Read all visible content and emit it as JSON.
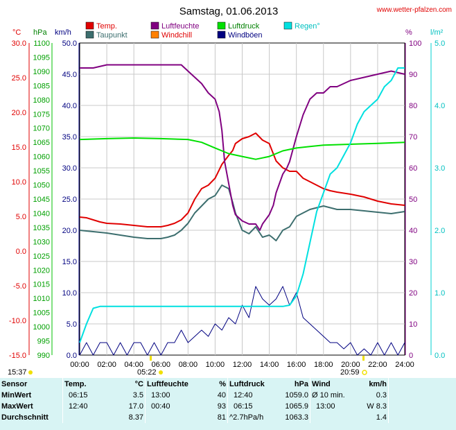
{
  "header": {
    "title": "Samstag, 01.06.2013",
    "site": "www.wetter-pfalzen.com"
  },
  "legend": [
    {
      "label": "Temp.",
      "color": "#e00000"
    },
    {
      "label": "Taupunkt",
      "color": "#3c6e6e"
    },
    {
      "label": "Luftfeuchte",
      "color": "#800080"
    },
    {
      "label": "Windchill",
      "color": "#ff8000"
    },
    {
      "label": "Luftdruck",
      "color": "#00e000"
    },
    {
      "label": "Windböen",
      "color": "#000080"
    },
    {
      "label": "Regen°",
      "color": "#00e0e0"
    }
  ],
  "axes": {
    "units": {
      "temp": "°C",
      "press": "hPa",
      "wind": "km/h",
      "hum": "%",
      "rain": "l/m²"
    },
    "temp_ticks": [
      "30.0",
      "25.0",
      "20.0",
      "15.0",
      "10.0",
      "5.0",
      "0.0",
      "-5.0",
      "-10.0",
      "-15.0"
    ],
    "press_ticks": [
      "1100",
      "1095",
      "1090",
      "1085",
      "1080",
      "1075",
      "1070",
      "1065",
      "1060",
      "1055",
      "1050",
      "1045",
      "1040",
      "1035",
      "1030",
      "1025",
      "1020",
      "1015",
      "1010",
      "1005",
      "1000",
      "995",
      "990"
    ],
    "wind_ticks": [
      "50.0",
      "45.0",
      "40.0",
      "35.0",
      "30.0",
      "25.0",
      "20.0",
      "15.0",
      "10.0",
      "5.0",
      "0.0"
    ],
    "hum_ticks": [
      "100",
      "90",
      "80",
      "70",
      "60",
      "50",
      "40",
      "30",
      "20",
      "10",
      "0"
    ],
    "rain_ticks": [
      "5.0",
      "4.0",
      "3.0",
      "2.0",
      "1.0",
      "0.0"
    ],
    "time_ticks": [
      "00:00",
      "02:00",
      "04:00",
      "06:00",
      "08:00",
      "10:00",
      "12:00",
      "14:00",
      "16:00",
      "18:00",
      "20:00",
      "22:00",
      "24:00"
    ]
  },
  "sun": {
    "sunrise": "05:22",
    "sunset": "20:59",
    "left_time": "15:37"
  },
  "chart_data": {
    "type": "line",
    "title": "Samstag, 01.06.2013",
    "x_range": [
      0,
      24
    ],
    "series": [
      {
        "name": "Temp.",
        "axis": "temp",
        "ylim": [
          -15,
          30
        ],
        "x": [
          0,
          0.5,
          1,
          1.5,
          2,
          3,
          4,
          4.5,
          5,
          5.5,
          6,
          6.5,
          7,
          7.5,
          8,
          8.5,
          9,
          9.5,
          10,
          10.5,
          11,
          11.3,
          11.5,
          12,
          12.5,
          13,
          13.5,
          14,
          14.2,
          14.5,
          15,
          15.5,
          16,
          16.5,
          17,
          17.5,
          18,
          18.5,
          19,
          20,
          21,
          22,
          23,
          24
        ],
        "y": [
          4.9,
          4.8,
          4.5,
          4.2,
          4.0,
          3.9,
          3.7,
          3.6,
          3.5,
          3.5,
          3.5,
          3.7,
          4.0,
          4.5,
          5.5,
          7.5,
          9.0,
          9.5,
          10.5,
          12.5,
          13.8,
          14.5,
          15.5,
          16.2,
          16.5,
          17.0,
          16.0,
          15.5,
          14.5,
          13.0,
          12.0,
          11.5,
          11.5,
          10.5,
          10.0,
          9.5,
          9.0,
          8.7,
          8.5,
          8.2,
          7.8,
          7.2,
          6.8,
          6.6
        ]
      },
      {
        "name": "Taupunkt",
        "axis": "temp",
        "ylim": [
          -15,
          30
        ],
        "x": [
          0,
          1,
          2,
          3,
          4,
          5,
          6,
          6.5,
          7,
          7.5,
          8,
          8.5,
          9,
          9.5,
          10,
          10.5,
          11,
          11.3,
          11.5,
          12,
          12.5,
          13,
          13.5,
          14,
          14.2,
          14.5,
          15,
          15.5,
          16,
          16.5,
          17,
          18,
          19,
          20,
          21,
          22,
          23,
          24
        ],
        "y": [
          3.0,
          2.8,
          2.6,
          2.3,
          2.0,
          1.8,
          1.8,
          2.0,
          2.3,
          3.0,
          4.0,
          5.5,
          6.5,
          7.5,
          8.0,
          9.5,
          9.0,
          7.0,
          5.5,
          3.0,
          2.5,
          3.5,
          2.0,
          2.3,
          2.0,
          1.5,
          3.0,
          3.5,
          5.0,
          5.5,
          6.0,
          6.5,
          6.0,
          6.0,
          5.8,
          5.6,
          5.4,
          5.7
        ]
      },
      {
        "name": "Luftfeuchte",
        "axis": "hum",
        "ylim": [
          0,
          100
        ],
        "x": [
          0,
          1,
          2,
          3,
          4,
          5,
          6,
          6.5,
          7,
          7.5,
          8,
          8.5,
          9,
          9.5,
          10,
          10.3,
          10.5,
          10.7,
          11,
          11.3,
          11.5,
          12,
          12.5,
          13,
          13.3,
          13.5,
          14,
          14.3,
          14.5,
          15,
          15.3,
          15.5,
          16,
          16.5,
          17,
          17.5,
          18,
          18.5,
          19,
          20,
          21,
          22,
          23,
          24
        ],
        "y": [
          92,
          92,
          93,
          93,
          93,
          93,
          93,
          93,
          93,
          93,
          91,
          89,
          87,
          84,
          82,
          78,
          72,
          62,
          55,
          48,
          45,
          43,
          42,
          42,
          40,
          42,
          45,
          48,
          52,
          58,
          60,
          62,
          70,
          77,
          82,
          84,
          84,
          86,
          86,
          88,
          89,
          90,
          91,
          90
        ]
      },
      {
        "name": "Luftdruck",
        "axis": "press",
        "ylim": [
          990,
          1100
        ],
        "x": [
          0,
          2,
          4,
          6,
          8,
          9,
          10,
          11,
          12,
          13,
          14,
          15,
          16,
          17,
          18,
          20,
          22,
          24
        ],
        "y": [
          1066.0,
          1066.3,
          1066.5,
          1066.3,
          1066.0,
          1065.0,
          1063.0,
          1061.0,
          1060.0,
          1059.0,
          1060.0,
          1062.0,
          1063.0,
          1063.5,
          1064.0,
          1064.3,
          1064.6,
          1065.0
        ]
      },
      {
        "name": "Windböen",
        "axis": "wind",
        "ylim": [
          0,
          50
        ],
        "x": [
          0,
          0.5,
          1,
          1.5,
          2,
          2.5,
          3,
          3.5,
          4,
          4.5,
          5,
          5.5,
          6,
          6.5,
          7,
          7.5,
          8,
          8.5,
          9,
          9.5,
          10,
          10.5,
          11,
          11.5,
          12,
          12.5,
          13,
          13.5,
          14,
          14.5,
          15,
          15.5,
          16,
          16.5,
          17,
          17.5,
          18,
          18.5,
          19,
          19.5,
          20,
          20.5,
          21,
          21.5,
          22,
          22.5,
          23,
          23.5,
          24
        ],
        "y": [
          0,
          2,
          0,
          2,
          2,
          0,
          2,
          0,
          2,
          2,
          0,
          2,
          0,
          2,
          2,
          4,
          2,
          3,
          4,
          3,
          5,
          4,
          6,
          5,
          8,
          6,
          11,
          9,
          8,
          9,
          11,
          8,
          10,
          6,
          5,
          4,
          3,
          2,
          2,
          1,
          2,
          0,
          1,
          0,
          2,
          0,
          2,
          0,
          2
        ]
      },
      {
        "name": "Regen°",
        "axis": "rain",
        "ylim": [
          0,
          5
        ],
        "x": [
          0,
          0.5,
          0.8,
          1,
          1.5,
          2,
          4,
          8,
          12,
          15,
          15.5,
          16,
          16.5,
          17,
          17.5,
          18,
          18.5,
          19,
          19.5,
          20,
          20.5,
          21,
          21.5,
          22,
          22.5,
          23,
          23.5,
          24
        ],
        "y": [
          0.2,
          0.5,
          0.65,
          0.75,
          0.78,
          0.78,
          0.78,
          0.78,
          0.78,
          0.78,
          0.8,
          0.95,
          1.3,
          1.8,
          2.3,
          2.6,
          2.9,
          3.0,
          3.2,
          3.4,
          3.7,
          3.9,
          4.0,
          4.1,
          4.3,
          4.4,
          4.6,
          4.6
        ]
      }
    ]
  },
  "stats": {
    "headers": {
      "sensor": "Sensor",
      "temp": "Temp.",
      "temp_unit": "°C",
      "hum": "Luftfeuchte",
      "hum_unit": "%",
      "press": "Luftdruck",
      "press_unit": "hPa",
      "wind": "Wind",
      "wind_unit": "km/h"
    },
    "rows": [
      {
        "label": "MinWert",
        "temp_time": "06:15",
        "temp_val": "3.5",
        "hum_time": "13:00",
        "hum_val": "40",
        "press_time": "12:40",
        "press_val": "1059.0",
        "wind_time": "Ø 10 min.",
        "wind_val": "0.3"
      },
      {
        "label": "MaxWert",
        "temp_time": "12:40",
        "temp_val": "17.0",
        "hum_time": "00:40",
        "hum_val": "93",
        "press_time": "06:15",
        "press_val": "1065.9",
        "wind_time": "13:00",
        "wind_val": "W 8.3"
      },
      {
        "label": "Durchschnitt",
        "temp_time": "",
        "temp_val": "8.37",
        "hum_time": "",
        "hum_val": "81",
        "press_time": "^2.7hPa/h",
        "press_val": "1063.3",
        "wind_time": "",
        "wind_val": "1.4"
      }
    ]
  }
}
